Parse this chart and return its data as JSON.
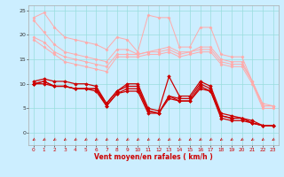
{
  "x": [
    0,
    1,
    2,
    3,
    4,
    5,
    6,
    7,
    8,
    9,
    10,
    11,
    12,
    13,
    14,
    15,
    16,
    17,
    18,
    19,
    20,
    21,
    22,
    23
  ],
  "upper1_y": [
    23.5,
    24.5,
    21.5,
    19.5,
    19.0,
    18.5,
    18.0,
    17.0,
    19.5,
    19.0,
    16.5,
    24.0,
    23.5,
    23.5,
    17.5,
    17.5,
    21.5,
    21.5,
    16.0,
    15.5,
    15.5,
    10.5,
    6.0,
    5.5
  ],
  "upper2_y": [
    23.0,
    20.5,
    18.0,
    16.5,
    16.0,
    15.5,
    15.0,
    14.5,
    17.0,
    17.0,
    16.0,
    16.5,
    17.0,
    17.5,
    16.5,
    16.5,
    17.5,
    17.5,
    15.0,
    14.5,
    14.5,
    10.5,
    5.5,
    5.5
  ],
  "upper3_y": [
    19.5,
    18.5,
    16.5,
    15.5,
    15.0,
    14.5,
    14.0,
    13.5,
    16.0,
    16.0,
    16.0,
    16.5,
    16.5,
    17.0,
    16.0,
    16.5,
    17.0,
    17.0,
    14.5,
    14.0,
    14.0,
    10.5,
    5.5,
    5.5
  ],
  "upper4_y": [
    19.0,
    17.5,
    16.0,
    14.5,
    14.0,
    13.5,
    13.0,
    12.5,
    15.5,
    15.5,
    15.5,
    16.0,
    16.0,
    16.5,
    15.5,
    16.0,
    16.5,
    16.5,
    14.0,
    13.5,
    13.5,
    10.0,
    5.0,
    5.0
  ],
  "lower1_y": [
    10.5,
    11.0,
    10.5,
    10.5,
    10.0,
    10.0,
    9.5,
    6.0,
    8.5,
    10.0,
    10.0,
    5.0,
    4.5,
    11.5,
    7.5,
    7.5,
    10.5,
    9.5,
    4.0,
    3.5,
    3.0,
    2.5,
    1.5,
    1.5
  ],
  "lower2_y": [
    10.0,
    10.5,
    9.5,
    9.5,
    9.0,
    9.0,
    9.0,
    6.0,
    8.5,
    9.5,
    9.5,
    4.5,
    4.0,
    7.5,
    7.0,
    7.0,
    10.0,
    9.0,
    3.5,
    3.0,
    3.0,
    2.0,
    1.5,
    1.5
  ],
  "lower3_y": [
    10.0,
    10.5,
    9.5,
    9.5,
    9.0,
    9.0,
    9.0,
    5.5,
    8.0,
    9.0,
    9.0,
    4.5,
    4.0,
    7.5,
    6.5,
    6.5,
    9.5,
    8.5,
    3.5,
    3.0,
    3.0,
    2.0,
    1.5,
    1.5
  ],
  "lower4_y": [
    10.0,
    10.0,
    9.5,
    9.5,
    9.0,
    9.0,
    8.5,
    5.5,
    8.0,
    8.5,
    8.5,
    4.0,
    4.0,
    7.0,
    6.5,
    6.5,
    9.0,
    8.5,
    3.0,
    2.5,
    2.5,
    2.0,
    1.5,
    1.5
  ],
  "bg_color": "#cceeff",
  "grid_color": "#99dddd",
  "light_color": "#ffaaaa",
  "dark_color": "#cc0000",
  "xlabel": "Vent moyen/en rafales ( km/h )",
  "yticks": [
    0,
    5,
    10,
    15,
    20,
    25
  ],
  "ylim": [
    -2.5,
    26
  ],
  "xlim": [
    -0.5,
    23.5
  ]
}
